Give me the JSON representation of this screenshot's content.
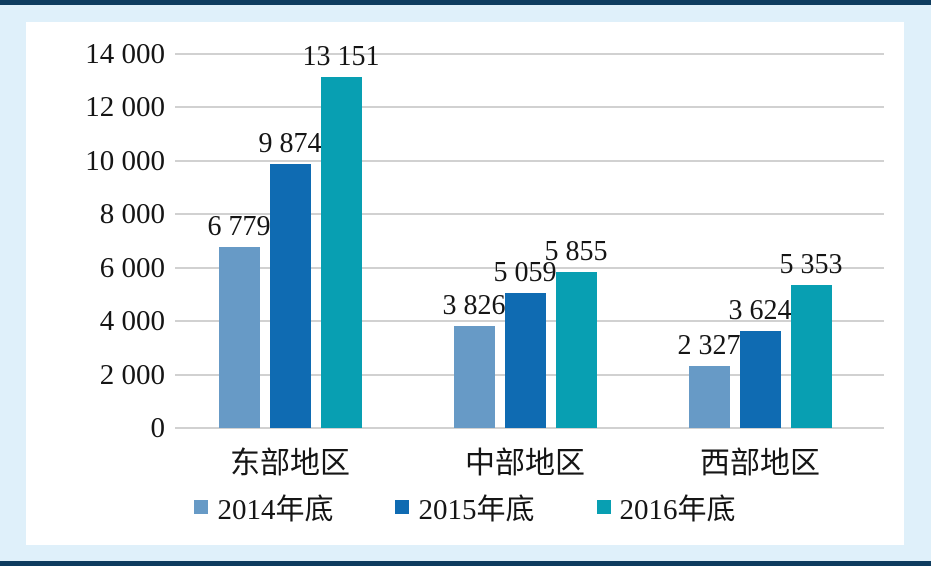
{
  "frame": {
    "background_color": "#dff0fa",
    "rule_color": "#0e3c5f",
    "card_color": "#ffffff",
    "gridline_color": "#d1d1d1",
    "text_color": "#151515"
  },
  "chart_data": {
    "type": "bar",
    "categories": [
      "东部地区",
      "中部地区",
      "西部地区"
    ],
    "series": [
      {
        "name": "2014年底",
        "color": "#679ac6",
        "values": [
          6779,
          3826,
          2327
        ],
        "labels": [
          "6 779",
          "3 826",
          "2 327"
        ]
      },
      {
        "name": "2015年底",
        "color": "#0f6bb2",
        "values": [
          9874,
          5059,
          3624
        ],
        "labels": [
          "9 874",
          "5 059",
          "3 624"
        ]
      },
      {
        "name": "2016年底",
        "color": "#089fb2",
        "values": [
          13151,
          5855,
          5353
        ],
        "labels": [
          "13 151",
          "5 855",
          "5 353"
        ]
      }
    ],
    "y_axis": {
      "min": 0,
      "max": 14000,
      "tick_step": 2000,
      "tick_labels": [
        "0",
        "2 000",
        "4 000",
        "6 000",
        "8 000",
        "10 000",
        "12 000",
        "14 000"
      ]
    },
    "grid": true,
    "legend_position": "bottom",
    "data_labels_shown": true
  }
}
